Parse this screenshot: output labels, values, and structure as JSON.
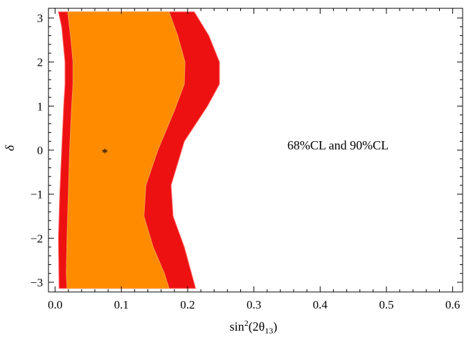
{
  "chart_data": {
    "type": "area",
    "title": "",
    "xlabel_main": "sin",
    "xlabel_sup": "2",
    "xlabel_rest": "(2θ",
    "xlabel_sub": "13",
    "xlabel_close": ")",
    "ylabel": "δ",
    "xlim": [
      -0.01,
      0.615
    ],
    "ylim": [
      -3.22,
      3.22
    ],
    "xticks": [
      0.0,
      0.1,
      0.2,
      0.3,
      0.4,
      0.5,
      0.6
    ],
    "xtick_labels": [
      "0.0",
      "0.1",
      "0.2",
      "0.3",
      "0.4",
      "0.5",
      "0.6"
    ],
    "yticks": [
      3,
      2,
      1,
      0,
      -1,
      -2,
      -3
    ],
    "ytick_labels": [
      "3",
      "2",
      "1",
      "0",
      "−1",
      "−2",
      "−3"
    ],
    "annotation": "68%CL and 90%CL",
    "best_fit": {
      "x": 0.075,
      "y": 0.0,
      "marker": "*"
    },
    "colors": {
      "cl90": "#ee1111",
      "cl68": "#ff8c00",
      "frame": "#000000"
    },
    "regions": [
      {
        "name": "90% CL",
        "left": [
          [
            0.005,
            3.14
          ],
          [
            0.01,
            2.8
          ],
          [
            0.015,
            2.0
          ],
          [
            0.015,
            1.5
          ],
          [
            0.013,
            1.0
          ],
          [
            0.01,
            0.0
          ],
          [
            0.007,
            -1.0
          ],
          [
            0.005,
            -2.0
          ],
          [
            0.006,
            -3.14
          ]
        ],
        "right": [
          [
            0.21,
            3.14
          ],
          [
            0.232,
            2.6
          ],
          [
            0.248,
            2.0
          ],
          [
            0.248,
            1.5
          ],
          [
            0.23,
            1.0
          ],
          [
            0.195,
            0.2
          ],
          [
            0.175,
            -0.8
          ],
          [
            0.178,
            -1.5
          ],
          [
            0.195,
            -2.2
          ],
          [
            0.212,
            -3.14
          ]
        ]
      },
      {
        "name": "68% CL",
        "left": [
          [
            0.019,
            3.14
          ],
          [
            0.024,
            2.5
          ],
          [
            0.027,
            2.0
          ],
          [
            0.027,
            1.5
          ],
          [
            0.025,
            1.0
          ],
          [
            0.022,
            0.0
          ],
          [
            0.02,
            -1.0
          ],
          [
            0.018,
            -2.0
          ],
          [
            0.017,
            -2.8
          ],
          [
            0.018,
            -3.14
          ]
        ],
        "right": [
          [
            0.172,
            3.14
          ],
          [
            0.185,
            2.6
          ],
          [
            0.196,
            2.0
          ],
          [
            0.195,
            1.5
          ],
          [
            0.18,
            0.9
          ],
          [
            0.155,
            0.0
          ],
          [
            0.137,
            -0.8
          ],
          [
            0.134,
            -1.5
          ],
          [
            0.148,
            -2.2
          ],
          [
            0.165,
            -2.8
          ],
          [
            0.172,
            -3.14
          ]
        ]
      }
    ]
  }
}
